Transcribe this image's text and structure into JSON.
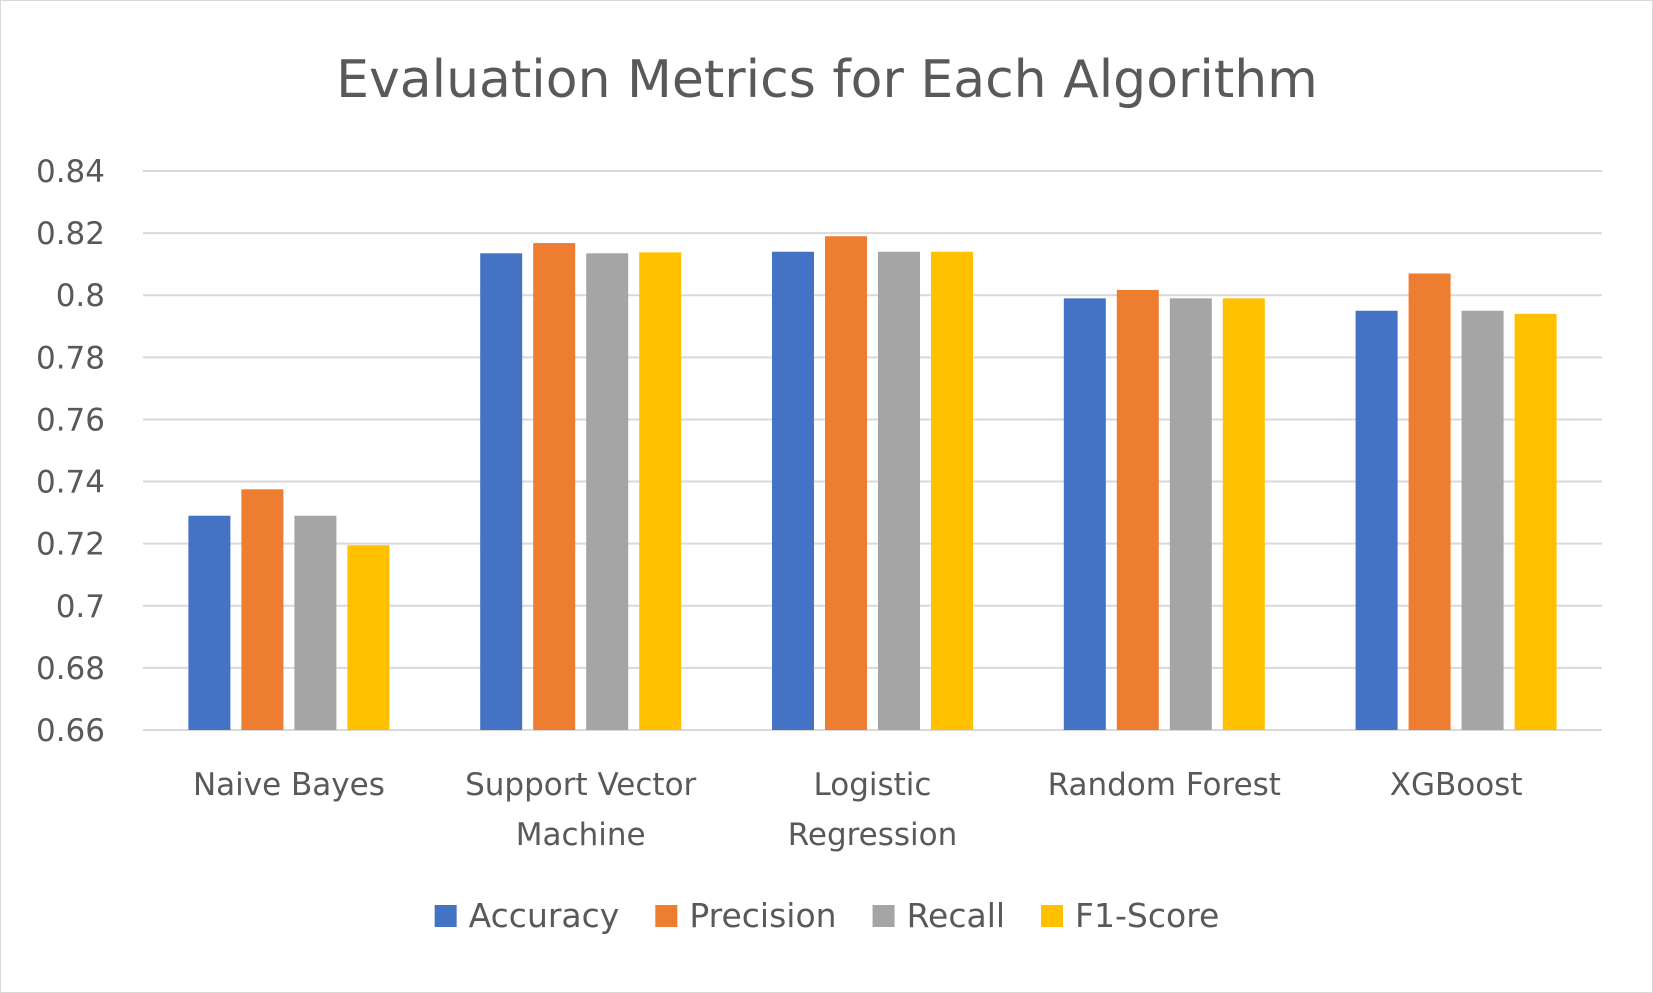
{
  "chart_data": {
    "type": "bar",
    "title": "Evaluation Metrics for Each Algorithm",
    "xlabel": "",
    "ylabel": "",
    "categories": [
      "Naive Bayes",
      "Support Vector Machine",
      "Logistic Regression",
      "Random Forest",
      "XGBoost"
    ],
    "category_lines": [
      [
        "Naive Bayes"
      ],
      [
        "Support Vector",
        "Machine"
      ],
      [
        "Logistic",
        "Regression"
      ],
      [
        "Random Forest"
      ],
      [
        "XGBoost"
      ]
    ],
    "series": [
      {
        "name": "Accuracy",
        "color": "#4472c4",
        "values": [
          0.729,
          0.8135,
          0.814,
          0.799,
          0.795
        ]
      },
      {
        "name": "Precision",
        "color": "#ed7d31",
        "values": [
          0.7375,
          0.8168,
          0.819,
          0.8017,
          0.807
        ]
      },
      {
        "name": "Recall",
        "color": "#a5a5a5",
        "values": [
          0.729,
          0.8135,
          0.814,
          0.799,
          0.795
        ]
      },
      {
        "name": "F1-Score",
        "color": "#ffc000",
        "values": [
          0.7195,
          0.8138,
          0.814,
          0.799,
          0.794
        ]
      }
    ],
    "ylim": [
      0.66,
      0.84
    ],
    "yticks": [
      0.66,
      0.68,
      0.7,
      0.72,
      0.74,
      0.76,
      0.78,
      0.8,
      0.82,
      0.84
    ],
    "ytick_labels": [
      "0.66",
      "0.68",
      "0.7",
      "0.72",
      "0.74",
      "0.76",
      "0.78",
      "0.8",
      "0.82",
      "0.84"
    ],
    "grid": true,
    "legend_position": "bottom"
  }
}
